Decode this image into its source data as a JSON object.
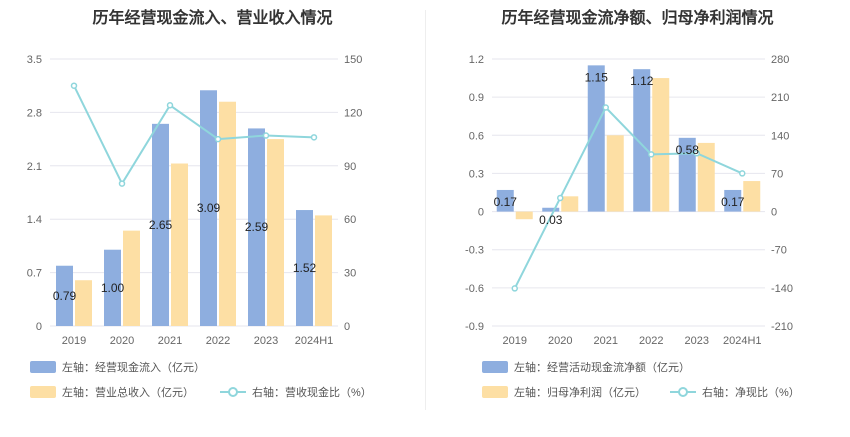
{
  "charts": [
    {
      "title": "历年经营现金流入、营业收入情况",
      "legend": [
        {
          "label": "左轴：经营现金流入（亿元）",
          "swatch": "bar",
          "color": "#8eaedf"
        },
        {
          "label": "左轴：营业总收入（亿元）",
          "swatch": "bar",
          "color": "#fddfa4"
        },
        {
          "label": "右轴：营收现金比（%）",
          "swatch": "line",
          "color": "#8fd6dc"
        }
      ]
    },
    {
      "title": "历年经营现金流净额、归母净利润情况",
      "legend": [
        {
          "label": "左轴：经营活动现金流净额（亿元）",
          "swatch": "bar",
          "color": "#8eaedf"
        },
        {
          "label": "左轴：归母净利润（亿元）",
          "swatch": "bar",
          "color": "#fddfa4"
        },
        {
          "label": "右轴：净现比（%）",
          "swatch": "line",
          "color": "#8fd6dc"
        }
      ]
    }
  ],
  "chart_data": [
    {
      "type": "bar",
      "title": "历年经营现金流入、营业收入情况",
      "categories": [
        "2019",
        "2020",
        "2021",
        "2022",
        "2023",
        "2024H1"
      ],
      "left_axis": {
        "min": 0,
        "max": 3.5,
        "ticks": [
          "0",
          "0.7",
          "1.4",
          "2.1",
          "2.8",
          "3.5"
        ]
      },
      "right_axis": {
        "min": 0,
        "max": 150,
        "ticks": [
          "0",
          "30",
          "60",
          "90",
          "120",
          "150"
        ]
      },
      "series": [
        {
          "name": "左轴：经营现金流入（亿元）",
          "type": "bar",
          "axis": "left",
          "color": "#8eaedf",
          "values": [
            0.79,
            1.0,
            2.65,
            3.09,
            2.59,
            1.52
          ],
          "labels": [
            "0.79",
            "1.00",
            "2.65",
            "3.09",
            "2.59",
            "1.52"
          ]
        },
        {
          "name": "左轴：营业总收入（亿元）",
          "type": "bar",
          "axis": "left",
          "color": "#fddfa4",
          "values": [
            0.6,
            1.25,
            2.13,
            2.94,
            2.45,
            1.45
          ]
        },
        {
          "name": "右轴：营收现金比（%）",
          "type": "line",
          "axis": "right",
          "color": "#8fd6dc",
          "values": [
            135,
            80,
            124,
            105,
            107,
            106
          ]
        }
      ],
      "grid": true,
      "legend_position": "bottom"
    },
    {
      "type": "bar",
      "title": "历年经营现金流净额、归母净利润情况",
      "categories": [
        "2019",
        "2020",
        "2021",
        "2022",
        "2023",
        "2024H1"
      ],
      "left_axis": {
        "min": -0.9,
        "max": 1.2,
        "ticks": [
          "-0.9",
          "-0.6",
          "-0.3",
          "0",
          "0.3",
          "0.6",
          "0.9",
          "1.2"
        ]
      },
      "right_axis": {
        "min": -210,
        "max": 280,
        "ticks": [
          "-210",
          "-140",
          "-70",
          "0",
          "70",
          "140",
          "210",
          "280"
        ]
      },
      "series": [
        {
          "name": "左轴：经营活动现金流净额（亿元）",
          "type": "bar",
          "axis": "left",
          "color": "#8eaedf",
          "values": [
            0.17,
            0.03,
            1.15,
            1.12,
            0.58,
            0.17
          ],
          "labels": [
            "0.17",
            "0.03",
            "1.15",
            "1.12",
            "0.58",
            "0.17"
          ]
        },
        {
          "name": "左轴：归母净利润（亿元）",
          "type": "bar",
          "axis": "left",
          "color": "#fddfa4",
          "values": [
            -0.06,
            0.12,
            0.6,
            1.05,
            0.54,
            0.24
          ]
        },
        {
          "name": "右轴：净现比（%）",
          "type": "line",
          "axis": "right",
          "color": "#8fd6dc",
          "values": [
            -141,
            25,
            191,
            105,
            107,
            70
          ]
        }
      ],
      "grid": true,
      "legend_position": "bottom"
    }
  ]
}
